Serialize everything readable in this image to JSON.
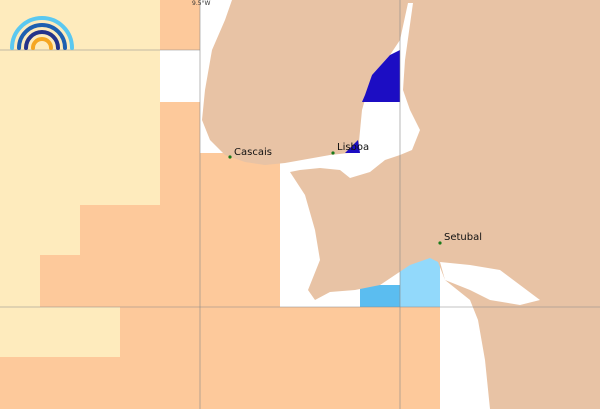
{
  "map": {
    "grid_label": "9.5°W",
    "places": [
      "Cascais",
      "Lisboa",
      "Setubal"
    ]
  }
}
